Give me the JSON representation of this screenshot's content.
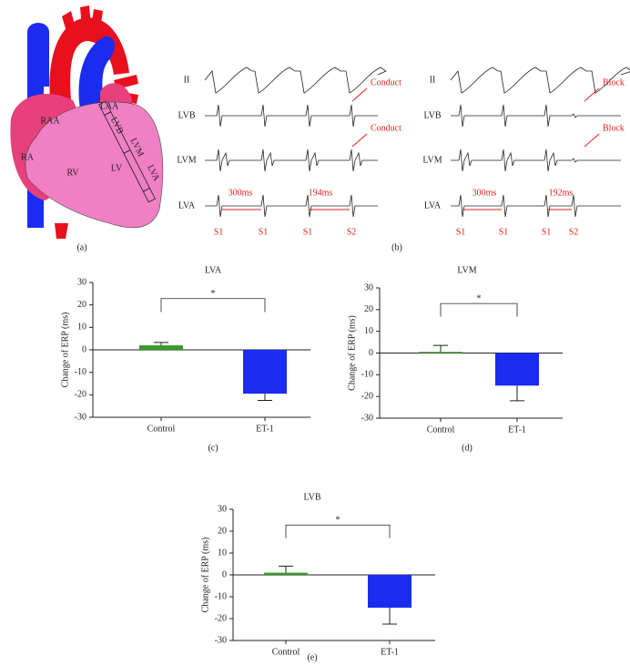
{
  "heart": {
    "labels": [
      "RAA",
      "LAA",
      "RA",
      "RV",
      "LV",
      "LVB",
      "LVM",
      "LVA"
    ],
    "panel": "(a)"
  },
  "traces": {
    "panel": "(b)",
    "left": {
      "leads": [
        "II",
        "LVB",
        "LVM",
        "LVA"
      ],
      "notes": [
        "Conduct",
        "Conduct"
      ],
      "intervals": [
        "300ms",
        "194ms"
      ],
      "stimuli": [
        "S1",
        "S1",
        "S1",
        "S2"
      ]
    },
    "right": {
      "leads": [
        "II",
        "LVB",
        "LVM",
        "LVA"
      ],
      "notes": [
        "Block",
        "Block"
      ],
      "intervals": [
        "300ms",
        "192ms"
      ],
      "stimuli": [
        "S1",
        "S1",
        "S1",
        "S2"
      ]
    }
  },
  "chart_data": [
    {
      "type": "bar",
      "title": "LVA",
      "ylabel": "Change of ERP (ms)",
      "categories": [
        "Control",
        "ET-1"
      ],
      "values": [
        2,
        -19.5
      ],
      "errors": [
        1.3,
        3
      ],
      "colors": [
        "#3a9a2a",
        "#1a2cf0"
      ],
      "ylim": [
        -30,
        30
      ],
      "yticks": [
        -30,
        -20,
        -10,
        0,
        10,
        20,
        30
      ],
      "annotation": "*",
      "panel": "(c)"
    },
    {
      "type": "bar",
      "title": "LVM",
      "ylabel": "Change of ERP (ms)",
      "categories": [
        "Control",
        "ET-1"
      ],
      "values": [
        0.5,
        -15
      ],
      "errors": [
        3,
        7
      ],
      "colors": [
        "#3a9a2a",
        "#1a2cf0"
      ],
      "ylim": [
        -30,
        30
      ],
      "yticks": [
        -30,
        -20,
        -10,
        0,
        10,
        20,
        30
      ],
      "annotation": "*",
      "panel": "(d)"
    },
    {
      "type": "bar",
      "title": "LVB",
      "ylabel": "Change of ERP (ms)",
      "categories": [
        "Control",
        "ET-1"
      ],
      "values": [
        1,
        -15
      ],
      "errors": [
        3,
        7.5
      ],
      "colors": [
        "#3a9a2a",
        "#1a2cf0"
      ],
      "ylim": [
        -30,
        30
      ],
      "yticks": [
        -30,
        -20,
        -10,
        0,
        10,
        20,
        30
      ],
      "annotation": "*",
      "panel": "(e)"
    }
  ]
}
